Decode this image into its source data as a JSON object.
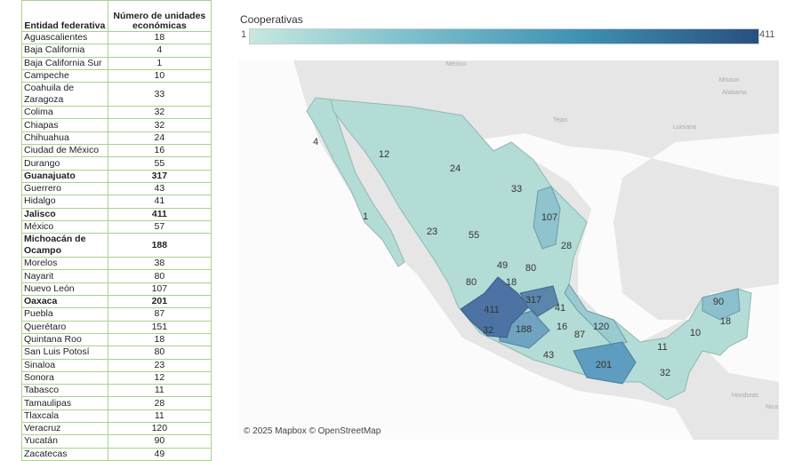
{
  "table": {
    "headers": [
      "Entidad federativa",
      "Número de unidades económicas"
    ],
    "rows": [
      [
        "Aguascalientes",
        18
      ],
      [
        "Baja California",
        4
      ],
      [
        "Baja California Sur",
        1
      ],
      [
        "Campeche",
        10
      ],
      [
        "Coahuila de Zaragoza",
        33
      ],
      [
        "Colima",
        32
      ],
      [
        "Chiapas",
        32
      ],
      [
        "Chihuahua",
        24
      ],
      [
        "Ciudad de México",
        16
      ],
      [
        "Durango",
        55
      ],
      [
        "Guanajuato",
        317
      ],
      [
        "Guerrero",
        43
      ],
      [
        "Hidalgo",
        41
      ],
      [
        "Jalisco",
        411
      ],
      [
        "México",
        57
      ],
      [
        "Michoacán de Ocampo",
        188
      ],
      [
        "Morelos",
        38
      ],
      [
        "Nayarit",
        80
      ],
      [
        "Nuevo León",
        107
      ],
      [
        "Oaxaca",
        201
      ],
      [
        "Puebla",
        87
      ],
      [
        "Querétaro",
        151
      ],
      [
        "Quintana Roo",
        18
      ],
      [
        "San Luis Potosí",
        80
      ],
      [
        "Sinaloa",
        23
      ],
      [
        "Sonora",
        12
      ],
      [
        "Tabasco",
        11
      ],
      [
        "Tamaulipas",
        28
      ],
      [
        "Tlaxcala",
        11
      ],
      [
        "Veracruz",
        120
      ],
      [
        "Yucatán",
        90
      ],
      [
        "Zacatecas",
        49
      ]
    ],
    "bold_rows": [
      "Guanajuato",
      "Jalisco",
      "Michoacán de Ocampo",
      "Oaxaca"
    ]
  },
  "legend": {
    "title": "Cooperativas",
    "min": "1",
    "max": "411",
    "color_low": "#c7e8e0",
    "color_high": "#2a4f7e"
  },
  "map": {
    "attribution": "© 2025 Mapbox © OpenStreetMap",
    "background_labels": [
      "México",
      "Misouri",
      "Alabama",
      "Tejas",
      "Luisiana",
      "Honduras",
      "Nica"
    ]
  }
}
